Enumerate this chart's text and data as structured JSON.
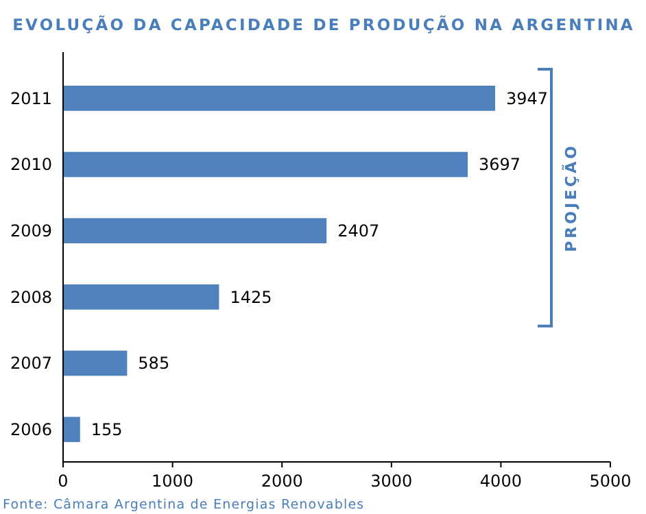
{
  "chart_data": {
    "type": "bar",
    "orientation": "horizontal",
    "title": "EVOLUÇÃO DA CAPACIDADE DE PRODUÇÃO NA ARGENTINA",
    "categories": [
      "2011",
      "2010",
      "2009",
      "2008",
      "2007",
      "2006"
    ],
    "values": [
      3947,
      3697,
      2407,
      1425,
      585,
      155
    ],
    "color": "#4f81bd",
    "data_labels": true,
    "xlim": [
      0,
      5000
    ],
    "xticks": [
      0,
      1000,
      2000,
      3000,
      4000,
      5000
    ],
    "annotations": [
      "PROJEÇÃO",
      "Fonte: Câmara Argentina de Energias Renovables"
    ]
  }
}
